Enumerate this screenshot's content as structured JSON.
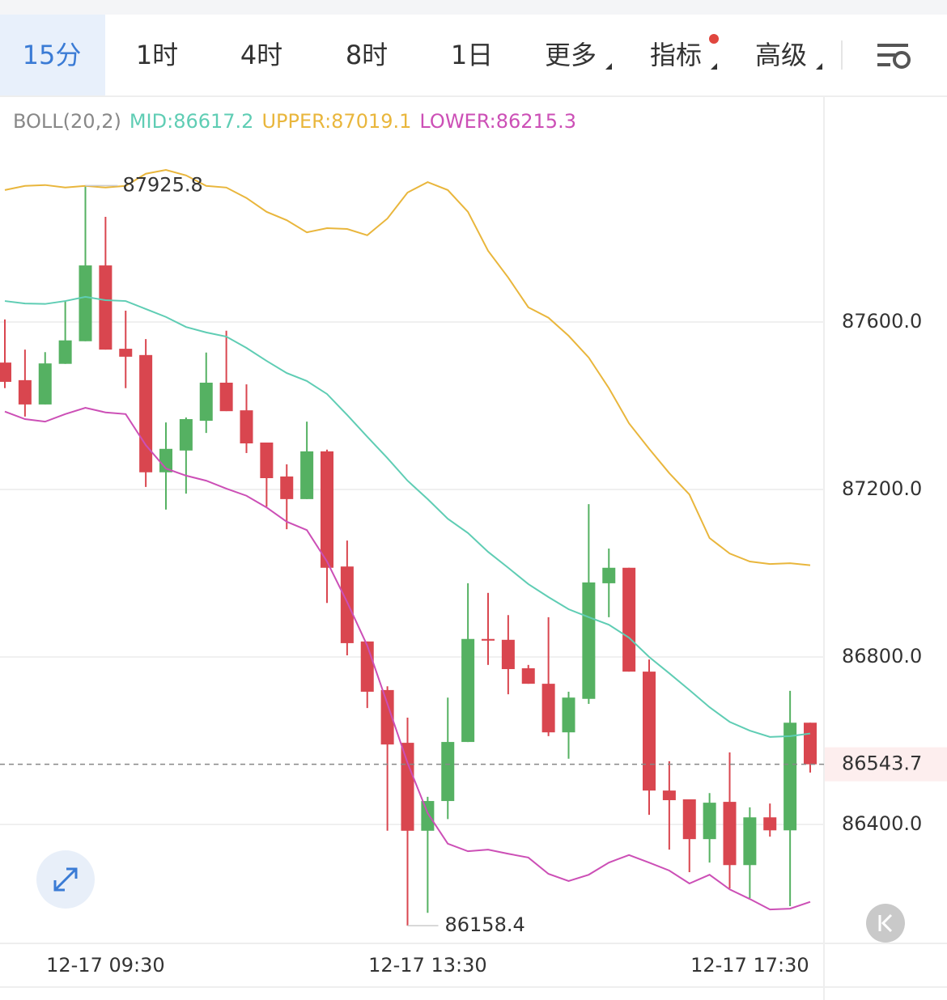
{
  "toolbar": {
    "tabs": [
      "15分",
      "1时",
      "4时",
      "8时",
      "1日",
      "更多",
      "指标",
      "高级"
    ]
  },
  "chart_data": {
    "type": "candlestick",
    "categories": [
      null,
      null,
      null,
      null,
      null,
      "12-17 09:30",
      null,
      null,
      null,
      null,
      null,
      null,
      null,
      null,
      null,
      null,
      null,
      null,
      null,
      null,
      null,
      "12-17 13:30",
      null,
      null,
      null,
      null,
      null,
      null,
      null,
      null,
      null,
      null,
      null,
      null,
      null,
      null,
      null,
      "12-17 17:30",
      null,
      null,
      null
    ],
    "open": [
      87503,
      87461,
      87403,
      87500,
      87554,
      87735,
      87536,
      87521,
      87241,
      87293,
      87364,
      87455,
      87389,
      87312,
      87231,
      87177,
      87291,
      87016,
      86837,
      86721,
      86595,
      86385,
      86456,
      86597,
      86843,
      86841,
      86773,
      86736,
      86620,
      86700,
      86976,
      87013,
      86765,
      86481,
      86460,
      86365,
      86454,
      86303,
      86417,
      86386,
      86643
    ],
    "high": [
      87606,
      87534,
      87528,
      87650,
      87925.8,
      87851,
      87627,
      87559,
      87360,
      87372,
      87527,
      87579,
      87451,
      87312,
      87260,
      87362,
      87295,
      87078,
      86837,
      86730,
      86655,
      86466,
      86703,
      86976,
      86953,
      86900,
      86781,
      86895,
      86717,
      87165,
      87059,
      87013,
      86794,
      86551,
      86460,
      86475,
      86572,
      86441,
      86450,
      86719,
      86643
    ],
    "low": [
      87442,
      87374,
      87403,
      87500,
      87554,
      87534,
      87442,
      87206,
      87152,
      87190,
      87335,
      87387,
      87287,
      87159,
      87105,
      87177,
      86929,
      86804,
      86678,
      86385,
      86158.4,
      86189,
      86413,
      86597,
      86781,
      86711,
      86736,
      86611,
      86557,
      86688,
      86895,
      86765,
      86423,
      86340,
      86286,
      86309,
      86247,
      86224,
      86371,
      86205,
      86524
    ],
    "close": [
      87457,
      87403,
      87501,
      87556,
      87735,
      87534,
      87517,
      87241,
      87297,
      87368,
      87455,
      87387,
      87310,
      87227,
      87177,
      87291,
      87013,
      86833,
      86717,
      86591,
      86385,
      86456,
      86597,
      86843,
      86839,
      86771,
      86736,
      86620,
      86703,
      86978,
      87013,
      86765,
      86481,
      86458,
      86365,
      86452,
      86303,
      86417,
      86386,
      86643,
      86543.7
    ],
    "up_color": "#55b162",
    "down_color": "#d9464f",
    "bollinger": {
      "label": "BOLL(20,2)",
      "series": [
        {
          "name": "MID:86617.2",
          "color": "#5fcdb4",
          "values": [
            87650,
            87644,
            87643,
            87650,
            87660,
            87652,
            87650,
            87631,
            87612,
            87588,
            87575,
            87565,
            87538,
            87507,
            87478,
            87459,
            87428,
            87378,
            87326,
            87275,
            87221,
            87177,
            87130,
            87096,
            87051,
            87013,
            86974,
            86943,
            86914,
            86895,
            86877,
            86846,
            86800,
            86761,
            86721,
            86680,
            86645,
            86624,
            86609,
            86611,
            86617.2
          ]
        },
        {
          "name": "UPPER:87019.1",
          "color": "#e9b63c",
          "values": [
            87915,
            87925,
            87927,
            87921,
            87925,
            87921,
            87925,
            87954,
            87963,
            87950,
            87925,
            87921,
            87896,
            87863,
            87843,
            87814,
            87824,
            87822,
            87807,
            87847,
            87909,
            87934,
            87915,
            87863,
            87770,
            87706,
            87635,
            87610,
            87567,
            87515,
            87442,
            87358,
            87297,
            87239,
            87188,
            87084,
            87047,
            87028,
            87022,
            87024,
            87019.1
          ]
        },
        {
          "name": "LOWER:86215.3",
          "color": "#cc4fb6",
          "values": [
            87386,
            87368,
            87362,
            87380,
            87395,
            87384,
            87380,
            87306,
            87250,
            87233,
            87221,
            87202,
            87185,
            87157,
            87123,
            87103,
            87028,
            86931,
            86827,
            86688,
            86547,
            86427,
            86354,
            86336,
            86340,
            86330,
            86321,
            86282,
            86265,
            86280,
            86309,
            86327,
            86309,
            86290,
            86259,
            86280,
            86245,
            86222,
            86197,
            86199,
            86215.3
          ]
        }
      ]
    },
    "ylim": [
      86118,
      88137
    ],
    "yticks": [
      {
        "value": 86400,
        "label": "86400.0"
      },
      {
        "value": 86800,
        "label": "86800.0"
      },
      {
        "value": 87200,
        "label": "87200.0"
      },
      {
        "value": 87600,
        "label": "87600.0"
      }
    ],
    "grid": true
  }
}
